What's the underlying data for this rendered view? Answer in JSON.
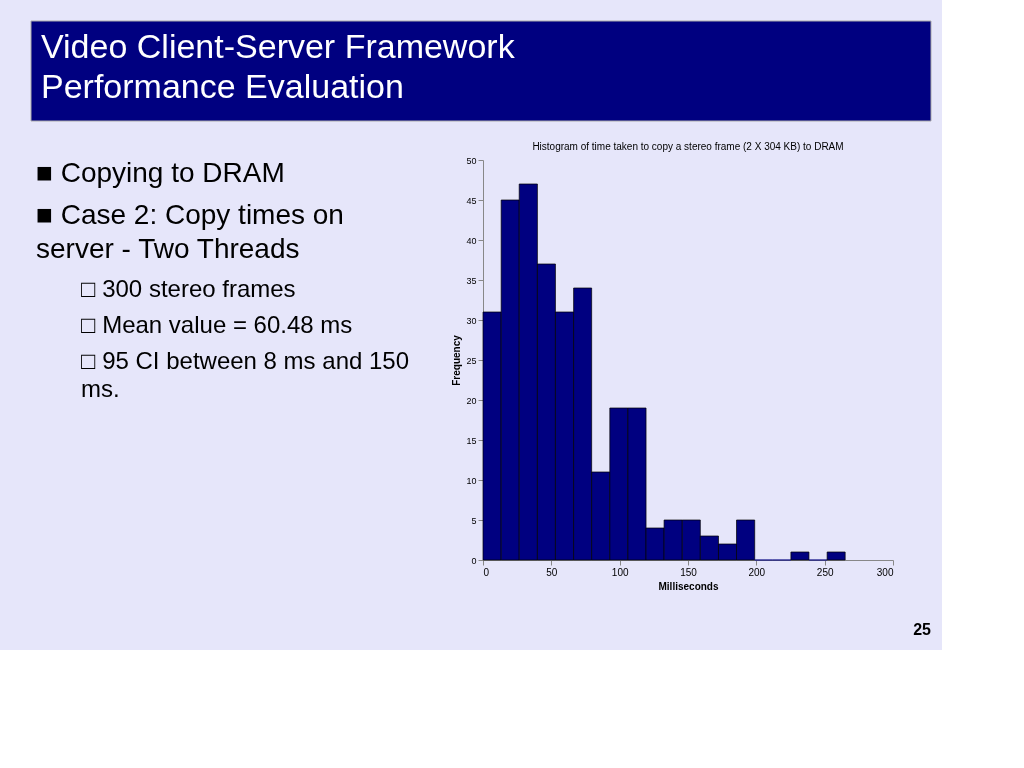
{
  "chart_data": {
    "type": "histogram",
    "title": "Histogram of time taken to copy a stereo frame (2 X 304 KB) to DRAM",
    "xlabel": "Milliseconds",
    "ylabel": "Frequency",
    "bins": [
      0,
      13.3,
      26.5,
      39.8,
      53,
      66.3,
      79.5,
      92.8,
      106,
      119.3,
      132.5,
      145.8,
      159,
      172.3,
      185.5,
      198.8,
      212,
      225.3,
      238.5,
      251.8,
      265
    ],
    "values": [
      31,
      45,
      47,
      37,
      31,
      34,
      11,
      19,
      19,
      4,
      5,
      5,
      3,
      2,
      5,
      0,
      0,
      1,
      0,
      1
    ],
    "color": "#000080",
    "xlim": [
      0,
      300
    ],
    "xticks": [
      0,
      50,
      100,
      150,
      200,
      250,
      300
    ],
    "ylim": [
      0,
      50
    ],
    "yticks": [
      0,
      5,
      10,
      15,
      20,
      25,
      30,
      35,
      40,
      45,
      50
    ],
    "grid": false,
    "annotations": [
      "Video Client-Server Framework Performance Evaluation",
      "■ Copying to DRAM",
      "■ Case 2: Copy times on server - Two Threads",
      "□ 300 stereo frames",
      "□ Mean value = 60.48 ms",
      "□ 95 CI between 8 ms and 150 ms.",
      "25"
    ]
  }
}
